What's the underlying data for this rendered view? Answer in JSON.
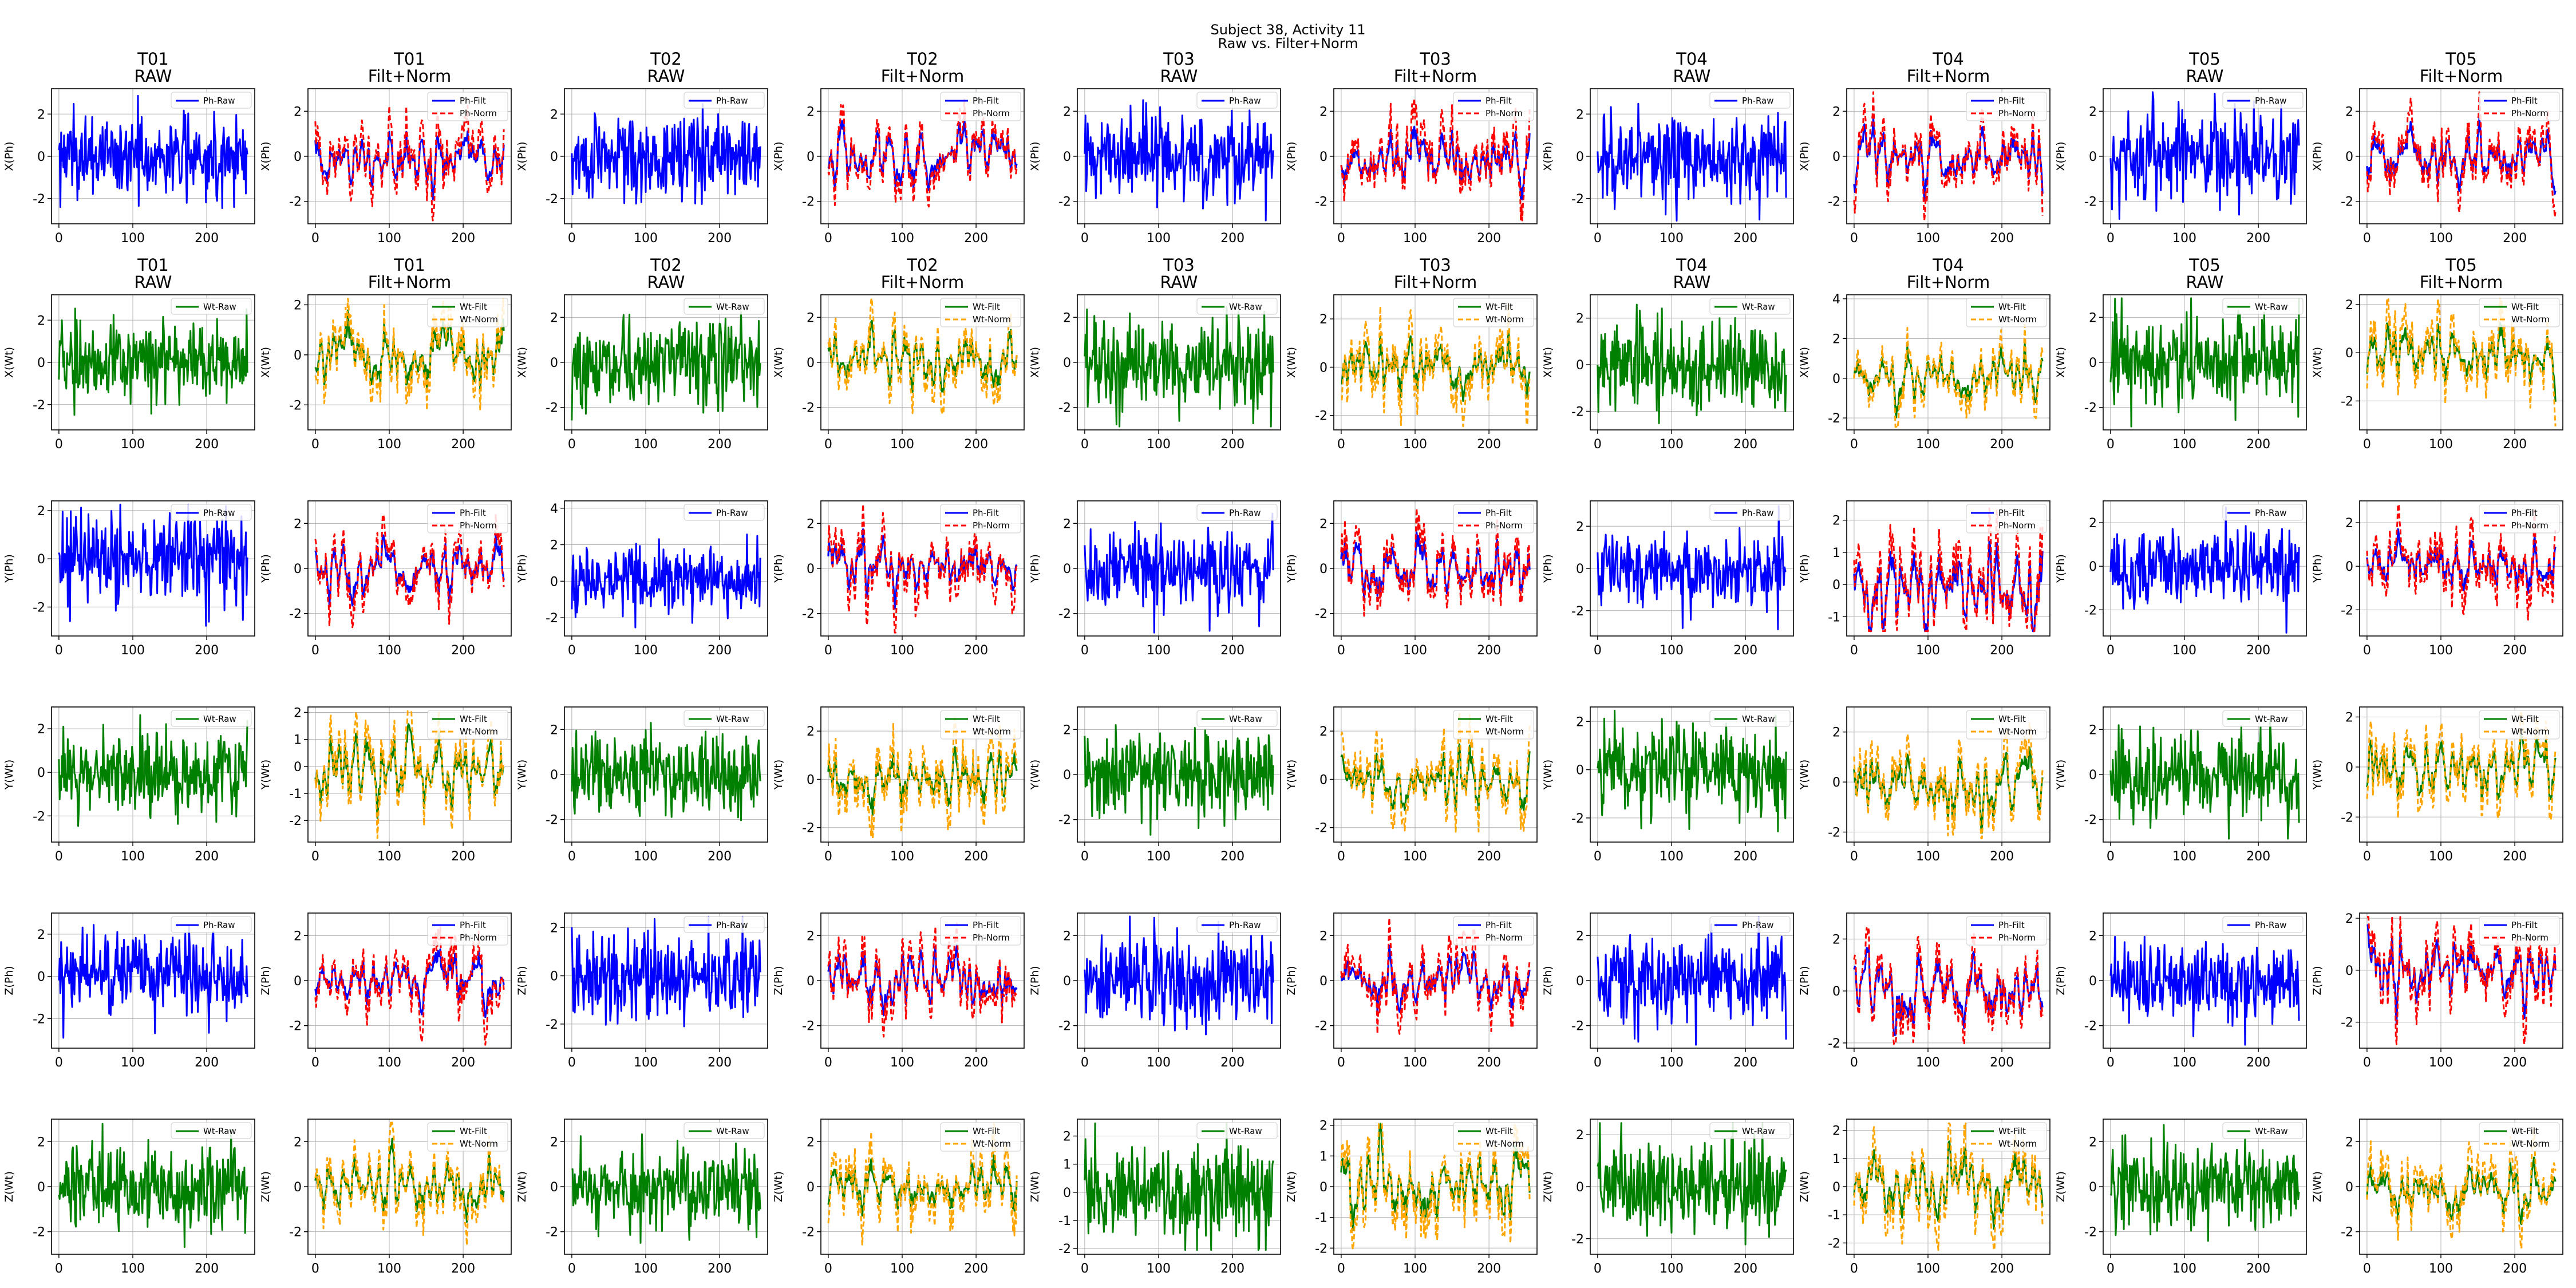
{
  "figure": {
    "title_line1": "Subject 38, Activity 11",
    "title_line2": "Raw vs. Filter+Norm"
  },
  "chart_data": {
    "type": "line",
    "layout": "grid of 6 rows x 10 columns of small line plots",
    "x_common": {
      "samples": 256,
      "xlim": [
        -10,
        265
      ],
      "xticks": [
        0,
        100,
        200
      ],
      "grid": true
    },
    "colors": {
      "Ph-Raw": "#0000ff",
      "Ph-Filt": "#0000ff",
      "Ph-Norm": "#ff0000",
      "Wt-Raw": "#008000",
      "Wt-Filt": "#008000",
      "Wt-Norm": "#ffa500"
    },
    "legend_placement": "upper right",
    "columns": [
      {
        "title": "T01\nRAW",
        "mode": "raw"
      },
      {
        "title": "T01\nFilt+Norm",
        "mode": "filt"
      },
      {
        "title": "T02\nRAW",
        "mode": "raw"
      },
      {
        "title": "T02\nFilt+Norm",
        "mode": "filt"
      },
      {
        "title": "T03\nRAW",
        "mode": "raw"
      },
      {
        "title": "T03\nFilt+Norm",
        "mode": "filt"
      },
      {
        "title": "T04\nRAW",
        "mode": "raw"
      },
      {
        "title": "T04\nFilt+Norm",
        "mode": "filt"
      },
      {
        "title": "T05\nRAW",
        "mode": "raw"
      },
      {
        "title": "T05\nFilt+Norm",
        "mode": "filt"
      }
    ],
    "rows": [
      {
        "ylabel": "X(Ph)",
        "sensor": "Ph",
        "titled": true,
        "yticks": [
          [
            -2,
            0,
            2
          ],
          [
            -2,
            0,
            2
          ],
          [
            -2,
            0,
            2
          ],
          [
            -2,
            0,
            2
          ],
          [
            -2,
            0,
            2
          ],
          [
            -2,
            0,
            2
          ],
          [
            -2,
            0,
            2
          ],
          [
            -2,
            0,
            2
          ],
          [
            -2,
            0,
            2
          ],
          [
            -2,
            0,
            2
          ]
        ],
        "ylims": [
          [
            -3.2,
            3.2
          ],
          [
            -3.0,
            3.0
          ],
          [
            -3.2,
            3.2
          ],
          [
            -3.0,
            3.0
          ],
          [
            -3.0,
            3.0
          ],
          [
            -3.0,
            3.0
          ],
          [
            -3.2,
            3.2
          ],
          [
            -3.0,
            3.0
          ],
          [
            -3.0,
            3.0
          ],
          [
            -3.0,
            3.0
          ]
        ]
      },
      {
        "ylabel": "X(Wt)",
        "sensor": "Wt",
        "titled": true,
        "yticks": [
          [
            -2,
            0,
            2
          ],
          [
            -2,
            0,
            2
          ],
          [
            -2,
            0,
            2
          ],
          [
            -2,
            0,
            2
          ],
          [
            -2,
            0,
            2
          ],
          [
            -2,
            0,
            2
          ],
          [
            -2,
            0,
            2
          ],
          [
            -2,
            0,
            -2,
            2,
            4
          ],
          [
            -2,
            0,
            2
          ],
          [
            -2,
            0,
            2
          ]
        ],
        "ylims": [
          [
            -3.2,
            3.2
          ],
          [
            -3.0,
            2.4
          ],
          [
            -3.0,
            3.0
          ],
          [
            -3.0,
            3.0
          ],
          [
            -3.0,
            3.0
          ],
          [
            -2.6,
            3.0
          ],
          [
            -2.8,
            3.0
          ],
          [
            -2.6,
            4.2
          ],
          [
            -3.0,
            3.0
          ],
          [
            -3.2,
            2.4
          ]
        ]
      },
      {
        "ylabel": "Y(Ph)",
        "sensor": "Ph",
        "titled": false,
        "yticks": [
          [
            -2,
            0,
            2
          ],
          [
            -2,
            0,
            2
          ],
          [
            -2,
            0,
            2,
            4
          ],
          [
            -2,
            0,
            2
          ],
          [
            -2,
            0,
            2
          ],
          [
            -2,
            0,
            2
          ],
          [
            -2,
            0,
            2
          ],
          [
            -1,
            0,
            1,
            2
          ],
          [
            -2,
            0,
            2
          ],
          [
            -2,
            0,
            2
          ]
        ],
        "ylims": [
          [
            -3.2,
            2.4
          ],
          [
            -3.0,
            3.0
          ],
          [
            -3.0,
            4.4
          ],
          [
            -3.0,
            3.0
          ],
          [
            -3.0,
            3.0
          ],
          [
            -3.0,
            3.0
          ],
          [
            -3.2,
            3.2
          ],
          [
            -1.6,
            2.6
          ],
          [
            -3.2,
            3.0
          ],
          [
            -3.2,
            3.0
          ]
        ]
      },
      {
        "ylabel": "Y(Wt)",
        "sensor": "Wt",
        "titled": false,
        "yticks": [
          [
            -2,
            0,
            2
          ],
          [
            -2,
            -1,
            0,
            1,
            2
          ],
          [
            -2,
            0,
            2
          ],
          [
            -2,
            0,
            2
          ],
          [
            -2,
            0,
            2
          ],
          [
            -2,
            0,
            2
          ],
          [
            -2,
            0,
            2
          ],
          [
            -2,
            0,
            2
          ],
          [
            -2,
            0,
            2
          ],
          [
            -2,
            0,
            2
          ]
        ],
        "ylims": [
          [
            -3.2,
            3.0
          ],
          [
            -2.8,
            2.2
          ],
          [
            -3.0,
            3.0
          ],
          [
            -2.6,
            3.0
          ],
          [
            -3.0,
            3.0
          ],
          [
            -2.6,
            3.0
          ],
          [
            -3.0,
            2.6
          ],
          [
            -2.4,
            3.0
          ],
          [
            -3.0,
            3.0
          ],
          [
            -3.0,
            2.4
          ]
        ]
      },
      {
        "ylabel": "Z(Ph)",
        "sensor": "Ph",
        "titled": false,
        "yticks": [
          [
            -2,
            0,
            2
          ],
          [
            -2,
            0,
            2
          ],
          [
            -2,
            0,
            2
          ],
          [
            -2,
            0,
            2
          ],
          [
            -2,
            0,
            2
          ],
          [
            -2,
            0,
            2
          ],
          [
            -2,
            0,
            2
          ],
          [
            -2,
            0,
            2
          ],
          [
            -2,
            0,
            2
          ],
          [
            -2,
            0,
            2
          ]
        ],
        "ylims": [
          [
            -3.4,
            3.0
          ],
          [
            -3.0,
            3.0
          ],
          [
            -3.0,
            2.6
          ],
          [
            -3.0,
            3.0
          ],
          [
            -3.0,
            3.0
          ],
          [
            -3.0,
            3.0
          ],
          [
            -3.0,
            3.0
          ],
          [
            -2.2,
            3.0
          ],
          [
            -3.0,
            3.0
          ],
          [
            -3.0,
            2.2
          ]
        ]
      },
      {
        "ylabel": "Z(Wt)",
        "sensor": "Wt",
        "titled": false,
        "yticks": [
          [
            -2,
            0,
            2
          ],
          [
            -2,
            0,
            2
          ],
          [
            -2,
            0,
            2
          ],
          [
            -2,
            0,
            2
          ],
          [
            -2,
            -1,
            0,
            1,
            2
          ],
          [
            -2,
            -1,
            0,
            1,
            2
          ],
          [
            -2,
            0,
            2
          ],
          [
            -2,
            -1,
            0,
            1,
            2
          ],
          [
            -2,
            0,
            2
          ],
          [
            -2,
            0,
            2
          ]
        ],
        "ylims": [
          [
            -3.0,
            3.0
          ],
          [
            -3.0,
            3.0
          ],
          [
            -3.0,
            3.0
          ],
          [
            -3.0,
            3.0
          ],
          [
            -2.2,
            2.6
          ],
          [
            -2.2,
            2.2
          ],
          [
            -2.6,
            2.6
          ],
          [
            -2.4,
            2.4
          ],
          [
            -3.0,
            3.0
          ],
          [
            -3.0,
            3.0
          ]
        ]
      }
    ]
  }
}
